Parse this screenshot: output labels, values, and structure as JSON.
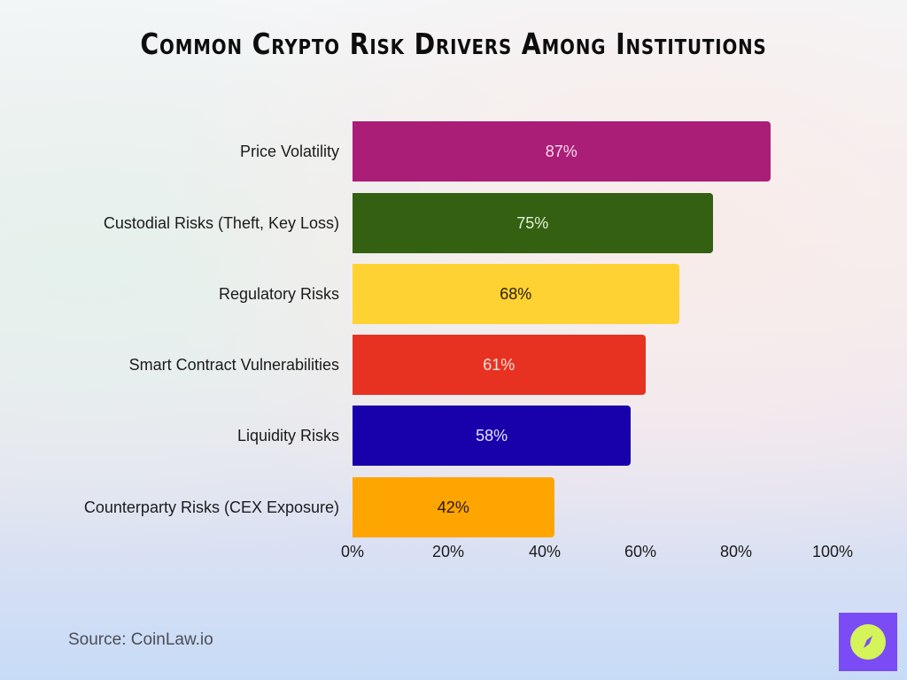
{
  "title": "Common Crypto Risk Drivers Among Institutions",
  "source": "Source: CoinLaw.io",
  "logo": {
    "icon": "compass-icon",
    "bg_color": "#7b4cf5",
    "circle_color": "#d4f45a"
  },
  "axis": {
    "ticks": [
      "0%",
      "20%",
      "40%",
      "60%",
      "80%",
      "100%"
    ]
  },
  "bars": [
    {
      "label": "Price Volatility",
      "value": 87,
      "value_label": "87%",
      "color": "#ab1e78",
      "text_color": "#f4dcea"
    },
    {
      "label": "Custodial Risks (Theft, Key Loss)",
      "value": 75,
      "value_label": "75%",
      "color": "#336111",
      "text_color": "#e4f0d8"
    },
    {
      "label": "Regulatory Risks",
      "value": 68,
      "value_label": "68%",
      "color": "#fed232",
      "text_color": "#2a2000"
    },
    {
      "label": "Smart Contract Vulnerabilities",
      "value": 61,
      "value_label": "61%",
      "color": "#e73222",
      "text_color": "#fbe0dc"
    },
    {
      "label": "Liquidity Risks",
      "value": 58,
      "value_label": "58%",
      "color": "#1800aa",
      "text_color": "#e6e2fb"
    },
    {
      "label": "Counterparty Risks (CEX Exposure)",
      "value": 42,
      "value_label": "42%",
      "color": "#fea502",
      "text_color": "#2a1a00"
    }
  ],
  "chart_data": {
    "type": "bar",
    "orientation": "horizontal",
    "title": "Common Crypto Risk Drivers Among Institutions",
    "categories": [
      "Price Volatility",
      "Custodial Risks (Theft, Key Loss)",
      "Regulatory Risks",
      "Smart Contract Vulnerabilities",
      "Liquidity Risks",
      "Counterparty Risks (CEX Exposure)"
    ],
    "values": [
      87,
      75,
      68,
      61,
      58,
      42
    ],
    "value_labels": [
      "87%",
      "75%",
      "68%",
      "61%",
      "58%",
      "42%"
    ],
    "colors": [
      "#ab1e78",
      "#336111",
      "#fed232",
      "#e73222",
      "#1800aa",
      "#fea502"
    ],
    "xlabel": "",
    "ylabel": "",
    "xlim": [
      0,
      100
    ],
    "x_ticks": [
      "0%",
      "20%",
      "40%",
      "60%",
      "80%",
      "100%"
    ],
    "grid": false,
    "legend": null,
    "source": "Source: CoinLaw.io"
  }
}
